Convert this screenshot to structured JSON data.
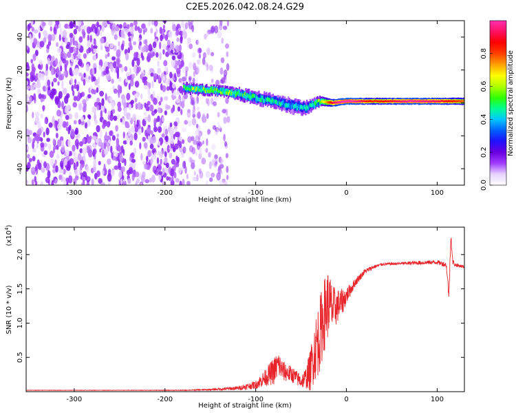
{
  "title": "C2E5.2026.042.08.24.G29",
  "chart_data": [
    {
      "type": "heatmap",
      "name": "spectrogram",
      "xlabel": "Height of straight line (km)",
      "ylabel": "Frequency (Hz)",
      "xlim": [
        -353,
        130
      ],
      "ylim": [
        -50,
        50
      ],
      "x_ticks": [
        -300,
        -200,
        -100,
        0,
        100
      ],
      "x_tick_labels": [
        "-300",
        "-200",
        "-100",
        "0",
        "100"
      ],
      "y_ticks": [
        -40,
        -20,
        0,
        20,
        40
      ],
      "y_tick_labels": [
        "-40",
        "-20",
        "0",
        "20",
        "40"
      ],
      "colorbar": {
        "label": "Normalized spectral amplitude",
        "range": [
          0,
          1
        ],
        "ticks": [
          0.0,
          0.2,
          0.4,
          0.6,
          0.8
        ],
        "tick_labels": [
          "0.0",
          "0.2",
          "0.4",
          "0.6",
          "0.8"
        ],
        "colors": [
          "#ffffff",
          "#e6d2ff",
          "#a03cff",
          "#6a00e0",
          "#2010ff",
          "#0060ff",
          "#00c8ff",
          "#00ff90",
          "#30ff00",
          "#b0ff00",
          "#ffff00",
          "#ffa000",
          "#ff4000",
          "#ff0000",
          "#ff1060",
          "#ff30b0"
        ]
      },
      "noise_region": {
        "x_from": -353,
        "x_to": -180,
        "sparse_to": -130,
        "amplitude": 0.15
      },
      "signal_track": [
        {
          "x": -180,
          "freq": 9,
          "width": 3.0,
          "amp": 0.45
        },
        {
          "x": -160,
          "freq": 8,
          "width": 3.0,
          "amp": 0.5
        },
        {
          "x": -140,
          "freq": 7,
          "width": 3.0,
          "amp": 0.5
        },
        {
          "x": -120,
          "freq": 5.5,
          "width": 3.5,
          "amp": 0.45
        },
        {
          "x": -100,
          "freq": 3,
          "width": 4.0,
          "amp": 0.4
        },
        {
          "x": -80,
          "freq": 1,
          "width": 4.0,
          "amp": 0.38
        },
        {
          "x": -60,
          "freq": -2,
          "width": 4.5,
          "amp": 0.35
        },
        {
          "x": -45,
          "freq": -3,
          "width": 4.0,
          "amp": 0.35
        },
        {
          "x": -30,
          "freq": 1,
          "width": 3.0,
          "amp": 0.5
        },
        {
          "x": -15,
          "freq": 0,
          "width": 2.2,
          "amp": 0.85
        },
        {
          "x": 0,
          "freq": 1,
          "width": 2.0,
          "amp": 0.95
        },
        {
          "x": 30,
          "freq": 1,
          "width": 2.0,
          "amp": 0.75
        },
        {
          "x": 70,
          "freq": 1,
          "width": 2.0,
          "amp": 0.9
        },
        {
          "x": 100,
          "freq": 1,
          "width": 2.0,
          "amp": 0.85
        },
        {
          "x": 130,
          "freq": 1,
          "width": 2.2,
          "amp": 0.7
        }
      ]
    },
    {
      "type": "line",
      "name": "snr",
      "xlabel": "Height of straight line (km)",
      "ylabel": "SNR (10 * v/v)",
      "y_multiplier": "(x10",
      "y_multiplier_exp": "4",
      "y_multiplier_close": ")",
      "xlim": [
        -353,
        130
      ],
      "ylim": [
        0,
        2.4
      ],
      "x_ticks": [
        -300,
        -200,
        -100,
        0,
        100
      ],
      "x_tick_labels": [
        "-300",
        "-200",
        "-100",
        "0",
        "100"
      ],
      "y_ticks": [
        0.5,
        1.0,
        1.5,
        2.0
      ],
      "y_tick_labels": [
        "0.5",
        "1.0",
        "1.5",
        "2.0"
      ],
      "color": "#e8242a",
      "x": [
        -353,
        -250,
        -180,
        -150,
        -120,
        -100,
        -90,
        -80,
        -75,
        -70,
        -60,
        -50,
        -45,
        -40,
        -35,
        -30,
        -25,
        -20,
        -15,
        -10,
        -5,
        0,
        10,
        20,
        30,
        40,
        60,
        80,
        100,
        110,
        113,
        115,
        117,
        120,
        130
      ],
      "y": [
        0.02,
        0.02,
        0.02,
        0.03,
        0.05,
        0.1,
        0.2,
        0.3,
        0.4,
        0.3,
        0.25,
        0.15,
        0.2,
        0.3,
        0.6,
        0.8,
        1.1,
        1.3,
        1.2,
        1.25,
        1.3,
        1.4,
        1.6,
        1.75,
        1.82,
        1.86,
        1.87,
        1.88,
        1.89,
        1.85,
        1.4,
        2.3,
        1.9,
        1.85,
        1.82
      ],
      "noise": [
        0.003,
        0.003,
        0.005,
        0.01,
        0.03,
        0.06,
        0.12,
        0.2,
        0.2,
        0.15,
        0.12,
        0.1,
        0.15,
        0.3,
        0.45,
        0.55,
        0.55,
        0.5,
        0.35,
        0.25,
        0.2,
        0.12,
        0.06,
        0.04,
        0.03,
        0.02,
        0.02,
        0.03,
        0.03,
        0.04,
        0.1,
        0.1,
        0.05,
        0.03,
        0.02
      ]
    }
  ]
}
